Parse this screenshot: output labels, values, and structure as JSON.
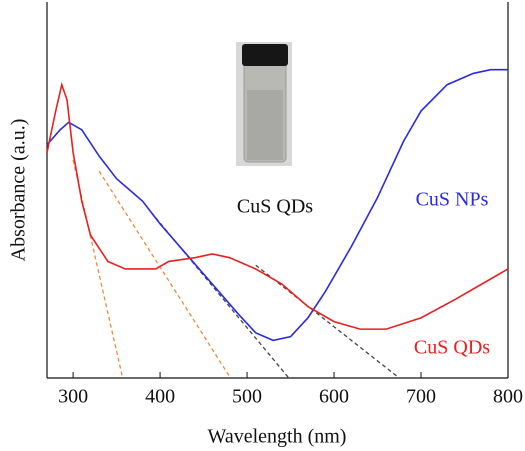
{
  "chart_data": {
    "type": "line",
    "x_label": "Wavelength (nm)",
    "y_label": "Absorbance (a.u.)",
    "xlim": [
      270,
      800
    ],
    "ylim": [
      0,
      1
    ],
    "xticks": [
      300,
      400,
      500,
      600,
      700,
      800
    ],
    "series": [
      {
        "name": "CuS  NPs",
        "color": "#2a2ae0",
        "x": [
          270,
          285,
          295,
          310,
          330,
          350,
          380,
          400,
          430,
          460,
          490,
          510,
          530,
          550,
          570,
          590,
          620,
          650,
          680,
          700,
          730,
          760,
          780,
          800
        ],
        "values": [
          0.62,
          0.66,
          0.68,
          0.66,
          0.59,
          0.53,
          0.47,
          0.41,
          0.33,
          0.25,
          0.17,
          0.12,
          0.1,
          0.11,
          0.16,
          0.23,
          0.35,
          0.48,
          0.63,
          0.71,
          0.78,
          0.81,
          0.82,
          0.82
        ]
      },
      {
        "name": "CuS  QDs",
        "color": "#e82020",
        "x": [
          270,
          280,
          287,
          293,
          300,
          310,
          320,
          340,
          360,
          380,
          395,
          410,
          440,
          460,
          480,
          510,
          540,
          570,
          600,
          630,
          660,
          700,
          740,
          770,
          800
        ],
        "values": [
          0.6,
          0.71,
          0.78,
          0.74,
          0.6,
          0.47,
          0.38,
          0.31,
          0.29,
          0.29,
          0.29,
          0.31,
          0.32,
          0.33,
          0.32,
          0.29,
          0.25,
          0.19,
          0.15,
          0.13,
          0.13,
          0.16,
          0.21,
          0.25,
          0.29
        ]
      }
    ],
    "tangent_lines": [
      {
        "color": "#f08a3c",
        "x": [
          300,
          357
        ],
        "values": [
          0.58,
          0
        ]
      },
      {
        "color": "#f08a3c",
        "x": [
          330,
          481
        ],
        "values": [
          0.55,
          0
        ]
      },
      {
        "color": "#444444",
        "x": [
          390,
          548
        ],
        "values": [
          0.44,
          0
        ]
      },
      {
        "color": "#444444",
        "x": [
          510,
          675
        ],
        "values": [
          0.3,
          0
        ]
      }
    ],
    "annotation": "CuS  QDs"
  }
}
